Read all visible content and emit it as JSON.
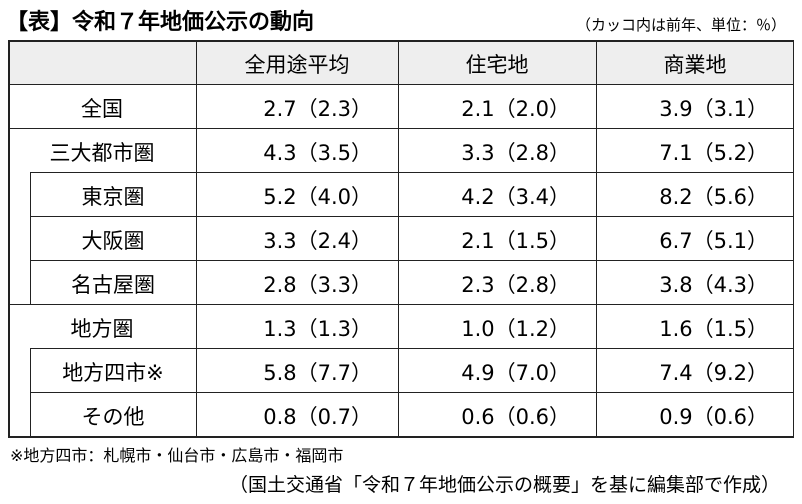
{
  "title": "【表】令和７年地価公示の動向",
  "unit_note": "（カッコ内は前年、単位：％）",
  "columns": [
    "",
    "全用途平均",
    "住宅地",
    "商業地"
  ],
  "rows": [
    {
      "name": "全国",
      "indent": 0,
      "values": [
        "2.7（2.3）",
        "2.1（2.0）",
        "3.9（3.1）"
      ]
    },
    {
      "name": "三大都市圏",
      "indent": 0,
      "values": [
        "4.3（3.5）",
        "3.3（2.8）",
        "7.1（5.2）"
      ]
    },
    {
      "name": "東京圏",
      "indent": 1,
      "values": [
        "5.2（4.0）",
        "4.2（3.4）",
        "8.2（5.6）"
      ]
    },
    {
      "name": "大阪圏",
      "indent": 1,
      "values": [
        "3.3（2.4）",
        "2.1（1.5）",
        "6.7（5.1）"
      ]
    },
    {
      "name": "名古屋圏",
      "indent": 1,
      "values": [
        "2.8（3.3）",
        "2.3（2.8）",
        "3.8（4.3）"
      ]
    },
    {
      "name": "地方圏",
      "indent": 0,
      "values": [
        "1.3（1.3）",
        "1.0（1.2）",
        "1.6（1.5）"
      ]
    },
    {
      "name": "地方四市※",
      "indent": 1,
      "values": [
        "5.8（7.7）",
        "4.9（7.0）",
        "7.4（9.2）"
      ]
    },
    {
      "name": "その他",
      "indent": 1,
      "values": [
        "0.8（0.7）",
        "0.6（0.6）",
        "0.9（0.6）"
      ]
    }
  ],
  "footnote": "※地方四市：札幌市・仙台市・広島市・福岡市",
  "source": "（国土交通省「令和７年地価公示の概要」を基に編集部で作成）"
}
